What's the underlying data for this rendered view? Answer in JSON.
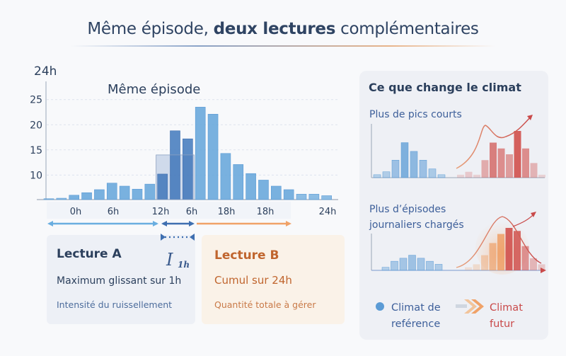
{
  "title": {
    "part1": "Même épisode, ",
    "part2": "deux lectures",
    "part3": " complémentaires"
  },
  "main_chart": {
    "chart_data": {
      "type": "bar",
      "title": "Même épisode",
      "y_axis_label": "24h",
      "y_ticks": [
        25,
        20,
        15,
        10
      ],
      "ylim": [
        5.2,
        28
      ],
      "x_tick_labels": [
        "0h",
        "6h",
        "12h",
        "6h",
        "18h",
        "18h",
        "24h"
      ],
      "values": [
        5.3,
        5.4,
        6.0,
        6.5,
        7.1,
        8.4,
        7.8,
        7.2,
        8.2,
        10.2,
        18.8,
        17.2,
        23.5,
        22.1,
        14.3,
        12.1,
        10.3,
        9.0,
        7.8,
        7.1,
        6.2,
        6.2,
        5.9
      ],
      "highlighted_bars": [
        9,
        10,
        11
      ],
      "highlight_window_level": 14,
      "grid": true
    }
  },
  "lecture_a": {
    "title": "Lecture A",
    "symbol": "I",
    "symbol_sub": "1h",
    "line1": "Maximum glissant sur 1h",
    "line2": "Intensité du ruissellement"
  },
  "lecture_b": {
    "title": "Lecture B",
    "line1": "Cumul sur 24h",
    "line2": "Quantité totale à gérer"
  },
  "panel": {
    "title": "Ce que change le climat",
    "chart1": {
      "label": "Plus de pics courts",
      "reference": [
        1,
        2,
        6,
        12,
        9,
        6,
        3,
        1
      ],
      "future": [
        1,
        2,
        1,
        6,
        12,
        10,
        8,
        16,
        10,
        5,
        1
      ]
    },
    "chart2": {
      "label_line1": "Plus d’épisodes",
      "label_line2": "journaliers chargés",
      "reference": [
        1,
        3,
        4,
        5,
        4,
        3,
        2
      ],
      "future": [
        1,
        2,
        5,
        9,
        12,
        14,
        13,
        8,
        4,
        2
      ]
    },
    "legend": {
      "reference_line1": "Climat de",
      "reference_line2": "reférence",
      "future_line1": "Climat",
      "future_line2": "futur"
    }
  },
  "colors": {
    "reference": "#5b9bd5",
    "reference_dark": "#3f6fb0",
    "future": "#d0504d",
    "lecture_b": "#c0652e",
    "text_dark": "#2b3f5c"
  }
}
